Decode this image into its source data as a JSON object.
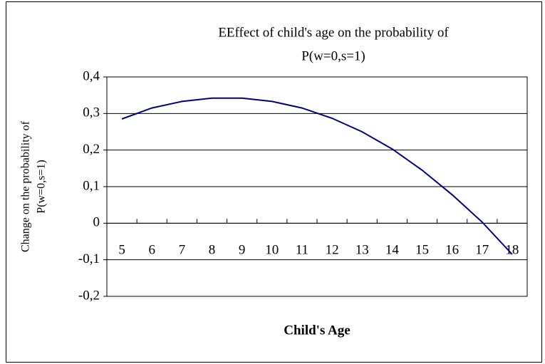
{
  "chart_data": {
    "type": "line",
    "title": [
      "EEffect of child's age on the probability of",
      "P(w=0,s=1)"
    ],
    "ylabel": [
      "Change on the probability of",
      "P(w=0,s=1)"
    ],
    "xlabel": "Child's Age",
    "categories": [
      5,
      6,
      7,
      8,
      9,
      10,
      11,
      12,
      13,
      14,
      15,
      16,
      17,
      18
    ],
    "series": [
      {
        "color": "#000080",
        "values": [
          0.285,
          0.315,
          0.333,
          0.342,
          0.342,
          0.333,
          0.315,
          0.287,
          0.25,
          0.203,
          0.145,
          0.078,
          0.003,
          -0.085
        ]
      }
    ],
    "ylim": [
      -0.2,
      0.4
    ],
    "yticks": [
      {
        "value": -0.2,
        "label": "-0,2"
      },
      {
        "value": -0.1,
        "label": "-0,1"
      },
      0,
      {
        "value": 0.1,
        "label": "0,1"
      },
      {
        "value": 0.2,
        "label": "0,2"
      },
      {
        "value": 0.3,
        "label": "0,3"
      },
      {
        "value": 0.4,
        "label": "0,4"
      }
    ],
    "grid": true
  }
}
